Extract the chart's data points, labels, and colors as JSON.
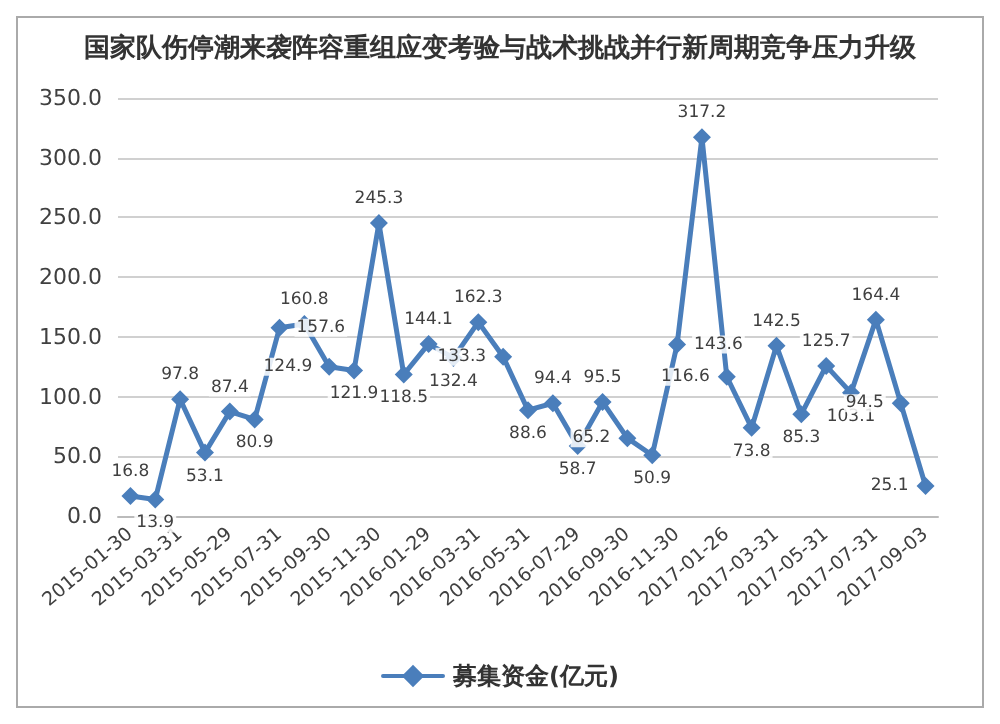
{
  "chart_data": {
    "type": "line",
    "title": "国家队伤停潮来袭阵容重组应变考验与战术挑战并行新周期竞争压力升级",
    "categories": [
      "2015-01-30",
      null,
      "2015-03-31",
      null,
      "2015-05-29",
      null,
      "2015-07-31",
      null,
      "2015-09-30",
      null,
      "2015-11-30",
      null,
      "2016-01-29",
      null,
      "2016-03-31",
      null,
      "2016-05-31",
      null,
      "2016-07-29",
      null,
      "2016-09-30",
      null,
      "2016-11-30",
      null,
      "2017-01-26",
      null,
      "2017-03-31",
      null,
      "2017-05-31",
      null,
      "2017-07-31",
      null,
      "2017-09-03"
    ],
    "series": [
      {
        "name": "募集资金(亿元)",
        "color": "#4a7ebb",
        "values": [
          16.8,
          13.9,
          97.8,
          53.1,
          87.4,
          80.9,
          157.6,
          160.8,
          124.9,
          121.9,
          245.3,
          118.5,
          144.1,
          132.4,
          162.3,
          133.3,
          88.6,
          94.4,
          58.7,
          95.5,
          65.2,
          50.9,
          143.6,
          317.2,
          116.6,
          73.8,
          142.5,
          85.3,
          125.7,
          103.1,
          164.4,
          94.5,
          25.1
        ]
      }
    ],
    "ylim": [
      0,
      350
    ],
    "yticks": [
      {
        "value": 0,
        "label": "0.0"
      },
      {
        "value": 50,
        "label": "50.0"
      },
      {
        "value": 100,
        "label": "100.0"
      },
      {
        "value": 150,
        "label": "150.0"
      },
      {
        "value": 200,
        "label": "200.0"
      },
      {
        "value": 250,
        "label": "250.0"
      },
      {
        "value": 300,
        "label": "300.0"
      },
      {
        "value": 350,
        "label": "350.0"
      }
    ],
    "grid": "y",
    "legend": "bottom",
    "marker": "diamond",
    "line_style": "solid",
    "data_labels": true
  }
}
